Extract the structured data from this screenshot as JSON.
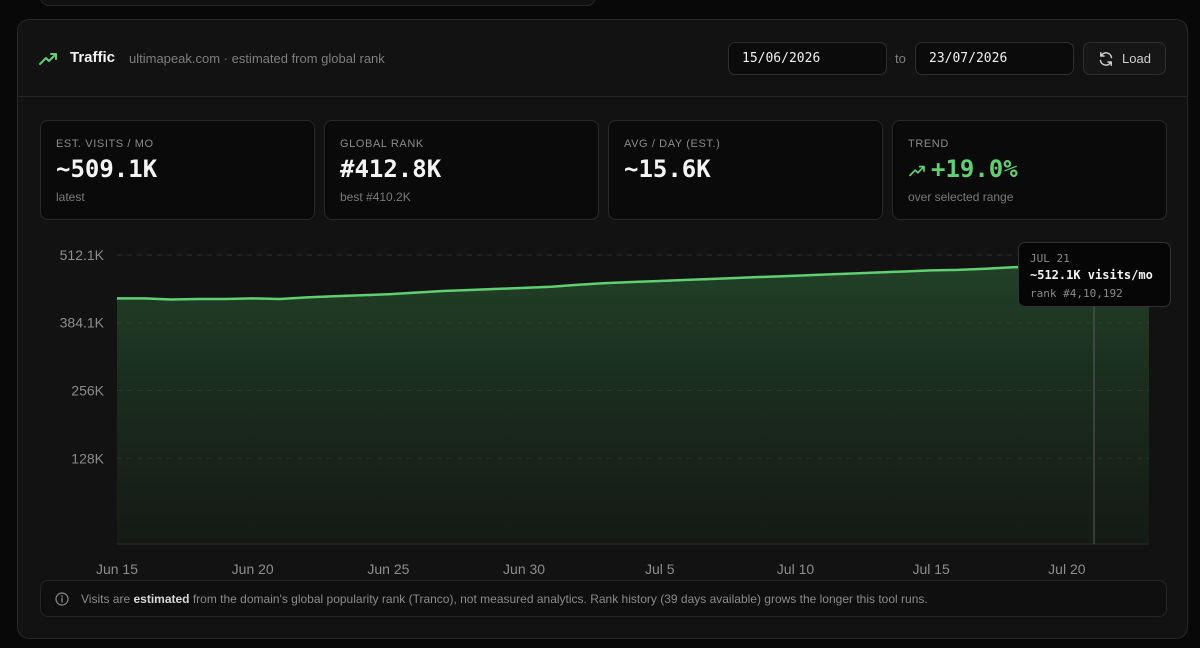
{
  "header": {
    "title": "Traffic",
    "subtitle": "ultimapeak.com · estimated from global rank",
    "date_from": "15/06/2026",
    "to_label": "to",
    "date_to": "23/07/2026",
    "load_label": "Load",
    "icons": {
      "title": "trending-up-icon",
      "load": "refresh-icon"
    }
  },
  "stats": [
    {
      "label": "EST. VISITS / MO",
      "value": "~509.1K",
      "sub": "latest"
    },
    {
      "label": "GLOBAL RANK",
      "value": "#412.8K",
      "sub": "best #410.2K"
    },
    {
      "label": "AVG / DAY (EST.)",
      "value": "~15.6K",
      "sub": ""
    },
    {
      "label": "TREND",
      "value": "+19.0%",
      "sub": "over selected range"
    }
  ],
  "tooltip": {
    "date": "JUL 21",
    "value": "~512.1K visits/mo",
    "rank": "rank #4,10,192"
  },
  "info": {
    "prefix": "Visits are ",
    "bold": "estimated",
    "suffix": " from the domain's global popularity rank (Tranco), not measured analytics. Rank history (39 days available) grows the longer this tool runs."
  },
  "colors": {
    "accent_green": "#5fcf72",
    "background": "#121212"
  },
  "chart_data": {
    "type": "area",
    "x": [
      "Jun 15",
      "Jun 16",
      "Jun 17",
      "Jun 18",
      "Jun 19",
      "Jun 20",
      "Jun 21",
      "Jun 22",
      "Jun 23",
      "Jun 24",
      "Jun 25",
      "Jun 26",
      "Jun 27",
      "Jun 28",
      "Jun 29",
      "Jun 30",
      "Jul 1",
      "Jul 2",
      "Jul 3",
      "Jul 4",
      "Jul 5",
      "Jul 6",
      "Jul 7",
      "Jul 8",
      "Jul 9",
      "Jul 10",
      "Jul 11",
      "Jul 12",
      "Jul 13",
      "Jul 14",
      "Jul 15",
      "Jul 16",
      "Jul 17",
      "Jul 18",
      "Jul 19",
      "Jul 20",
      "Jul 21"
    ],
    "series": [
      {
        "values": [
          430,
          430,
          428,
          429,
          429,
          430,
          429,
          432,
          434,
          436,
          438,
          441,
          444,
          446,
          448,
          450,
          452,
          456,
          459,
          461,
          463,
          465,
          467,
          469,
          471,
          473,
          475,
          477,
          479,
          481,
          483,
          484,
          486,
          489,
          490,
          491,
          512.1
        ]
      }
    ],
    "ylim": [
      0,
      520
    ],
    "yticks": [
      128,
      256,
      384.1,
      512.1
    ],
    "ytick_labels": [
      "128K",
      "256K",
      "384.1K",
      "512.1K"
    ],
    "xtick_labels": [
      "Jun 15",
      "Jun 20",
      "Jun 25",
      "Jun 30",
      "Jul 5",
      "Jul 10",
      "Jul 15",
      "Jul 20"
    ],
    "xtick_index": [
      0,
      5,
      10,
      15,
      20,
      25,
      30,
      35
    ],
    "highlight_index": 36,
    "grid": true
  }
}
